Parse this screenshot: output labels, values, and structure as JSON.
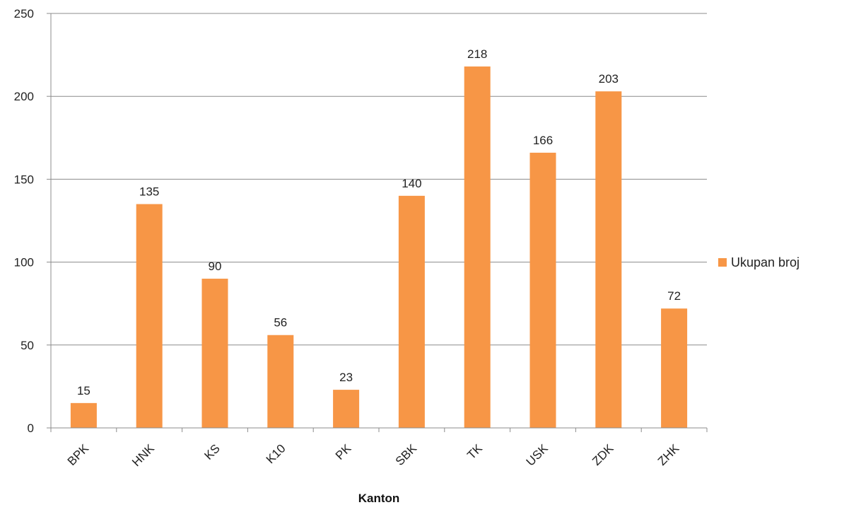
{
  "chart_data": {
    "type": "bar",
    "title": "",
    "xlabel": "Kanton",
    "ylabel": "",
    "ylim": [
      0,
      250
    ],
    "yticks": [
      0,
      50,
      100,
      150,
      200,
      250
    ],
    "categories": [
      "BPK",
      "HNK",
      "KS",
      "K10",
      "PK",
      "SBK",
      "TK",
      "USK",
      "ZDK",
      "ZHK"
    ],
    "series": [
      {
        "name": "Ukupan broj",
        "values": [
          15,
          135,
          90,
          56,
          23,
          140,
          218,
          166,
          203,
          72
        ],
        "color": "#F79646"
      }
    ],
    "grid": true,
    "legend": "right",
    "data_labels": true
  }
}
